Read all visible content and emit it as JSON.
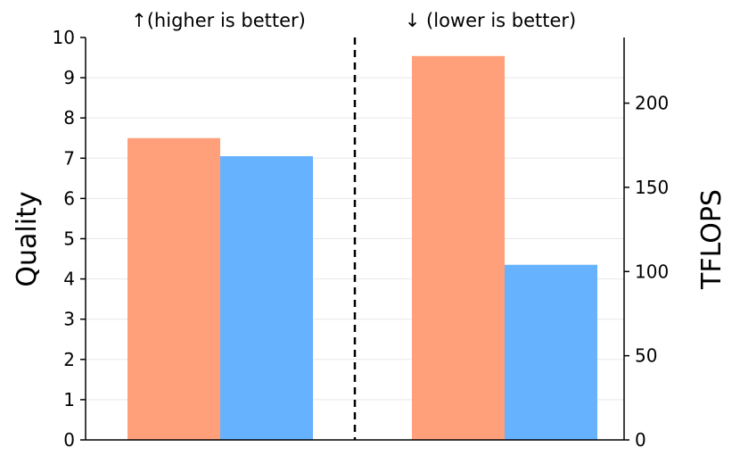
{
  "chart_data": {
    "type": "bar",
    "grid": true,
    "colors": {
      "quality_left": "#FFA07A",
      "quality_right": "#66B2FF",
      "divider": "#000000",
      "grid": "#e8e8e8"
    },
    "left_panel": {
      "title": "↑(higher is better)",
      "axis": "left",
      "ylabel": "Quality",
      "ylim": [
        0,
        10
      ],
      "yticks": [
        "0",
        "1",
        "2",
        "3",
        "4",
        "5",
        "6",
        "7",
        "8",
        "9",
        "10"
      ],
      "values": [
        7.5,
        7.05
      ]
    },
    "right_panel": {
      "title": "↓  (lower is better)",
      "axis": "right",
      "ylabel": "TFLOPS",
      "ylim": [
        0,
        239
      ],
      "yticks": [
        "0",
        "50",
        "100",
        "150",
        "200"
      ],
      "ytick_values": [
        0,
        50,
        100,
        150,
        200
      ],
      "values": [
        228,
        104
      ]
    }
  }
}
